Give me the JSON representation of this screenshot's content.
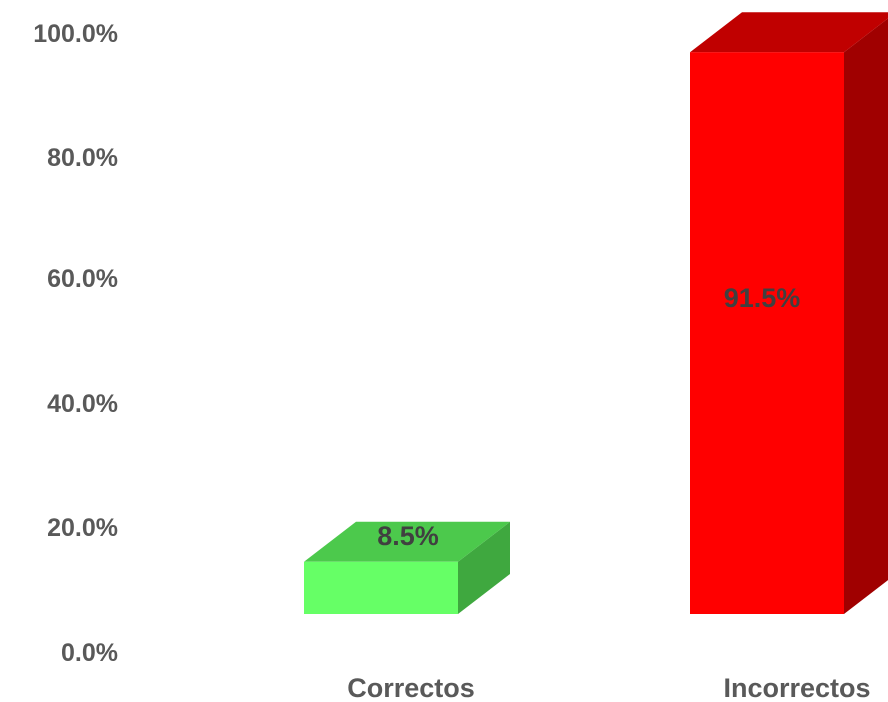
{
  "chart_data": {
    "type": "bar",
    "title": "",
    "xlabel": "",
    "ylabel": "",
    "ylim": [
      0,
      100
    ],
    "y_ticks": [
      "0.0%",
      "20.0%",
      "40.0%",
      "60.0%",
      "80.0%",
      "100.0%"
    ],
    "y_tick_values": [
      0,
      20,
      40,
      60,
      80,
      100
    ],
    "categories": [
      "Correctos",
      "Incorrectos"
    ],
    "values": [
      8.5,
      91.5
    ],
    "data_labels": [
      "8.5%",
      "91.5%"
    ],
    "grid": false,
    "legend": "none",
    "style": "3d-column",
    "colors": [
      {
        "front": "#66FF66",
        "top": "#4CC94C",
        "side": "#3FA83F"
      },
      {
        "front": "#FF0000",
        "top": "#C00000",
        "side": "#A00000"
      }
    ]
  }
}
